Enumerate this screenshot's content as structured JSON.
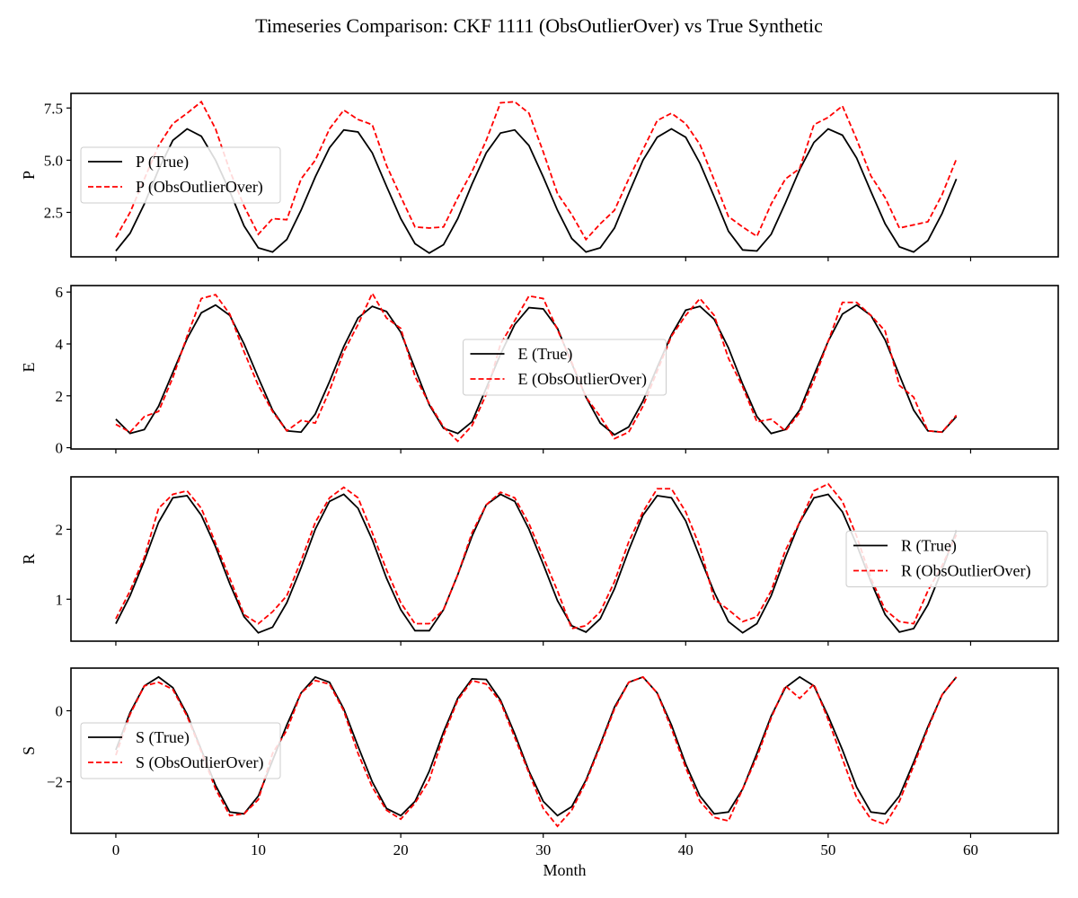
{
  "title": "Timeseries Comparison: CKF 1111 (ObsOutlierOver) vs True Synthetic",
  "xlabel": "Month",
  "colors": {
    "true": "#000000",
    "obs": "#ff0000"
  },
  "chart_data": [
    {
      "type": "line",
      "ylabel": "P",
      "xlim": [
        -3.15,
        66.15
      ],
      "ylim": [
        0.37,
        8.2
      ],
      "yticks": [
        2.5,
        5.0,
        7.5
      ],
      "ytick_labels": [
        "2.5",
        "5.0",
        "7.5"
      ],
      "xticks": [
        0,
        10,
        20,
        30,
        40,
        50,
        60
      ],
      "xtick_labels": [
        "0",
        "10",
        "20",
        "30",
        "40",
        "50",
        "60"
      ],
      "show_xtick_labels": false,
      "legend": "center-left",
      "series": [
        {
          "name": "P (True)",
          "style": "solid",
          "color": "#000000",
          "values": [
            0.65,
            1.5,
            2.9,
            4.55,
            5.95,
            6.5,
            6.15,
            5.0,
            3.5,
            1.85,
            0.8,
            0.6,
            1.2,
            2.6,
            4.2,
            5.6,
            6.45,
            6.35,
            5.35,
            3.75,
            2.2,
            1.0,
            0.55,
            0.95,
            2.2,
            3.85,
            5.35,
            6.3,
            6.45,
            5.7,
            4.2,
            2.6,
            1.25,
            0.6,
            0.8,
            1.75,
            3.4,
            5.0,
            6.1,
            6.5,
            6.1,
            4.85,
            3.25,
            1.6,
            0.7,
            0.65,
            1.45,
            2.95,
            4.55,
            5.85,
            6.5,
            6.2,
            5.1,
            3.5,
            1.95,
            0.85,
            0.6,
            1.15,
            2.45,
            4.1
          ]
        },
        {
          "name": "P (ObsOutlierOver)",
          "style": "dashed",
          "color": "#ff0000",
          "values": [
            1.3,
            2.5,
            4.1,
            5.7,
            6.75,
            7.25,
            7.8,
            6.5,
            4.5,
            2.8,
            1.45,
            2.2,
            2.15,
            4.1,
            5.0,
            6.5,
            7.4,
            6.95,
            6.7,
            4.75,
            3.25,
            1.8,
            1.75,
            1.8,
            3.2,
            4.45,
            5.95,
            7.75,
            7.8,
            7.25,
            5.4,
            3.4,
            2.4,
            1.2,
            1.95,
            2.6,
            4.1,
            5.5,
            6.9,
            7.25,
            6.75,
            5.75,
            4.05,
            2.3,
            1.8,
            1.35,
            2.9,
            4.1,
            4.6,
            6.7,
            7.05,
            7.6,
            6.0,
            4.25,
            3.2,
            1.75,
            1.9,
            2.05,
            3.35,
            5.05
          ]
        }
      ]
    },
    {
      "type": "line",
      "ylabel": "E",
      "xlim": [
        -3.15,
        66.15
      ],
      "ylim": [
        -0.05,
        6.25
      ],
      "yticks": [
        0,
        2,
        4,
        6
      ],
      "ytick_labels": [
        "0",
        "2",
        "4",
        "6"
      ],
      "xticks": [
        0,
        10,
        20,
        30,
        40,
        50,
        60
      ],
      "xtick_labels": [
        "0",
        "10",
        "20",
        "30",
        "40",
        "50",
        "60"
      ],
      "show_xtick_labels": false,
      "legend": "center",
      "series": [
        {
          "name": "E (True)",
          "style": "solid",
          "color": "#000000",
          "values": [
            1.1,
            0.55,
            0.7,
            1.6,
            2.9,
            4.2,
            5.2,
            5.5,
            5.1,
            4.0,
            2.7,
            1.45,
            0.65,
            0.6,
            1.3,
            2.55,
            3.9,
            5.0,
            5.45,
            5.25,
            4.45,
            3.05,
            1.65,
            0.75,
            0.55,
            1.0,
            2.3,
            3.6,
            4.75,
            5.4,
            5.35,
            4.6,
            3.25,
            1.95,
            0.95,
            0.5,
            0.8,
            1.8,
            3.1,
            4.35,
            5.3,
            5.45,
            4.95,
            3.85,
            2.45,
            1.2,
            0.55,
            0.7,
            1.45,
            2.8,
            4.1,
            5.15,
            5.5,
            5.1,
            4.15,
            2.8,
            1.45,
            0.65,
            0.6,
            1.2
          ]
        },
        {
          "name": "E (ObsOutlierOver)",
          "style": "dashed",
          "color": "#ff0000",
          "values": [
            0.9,
            0.6,
            1.2,
            1.4,
            2.7,
            4.3,
            5.75,
            5.9,
            5.15,
            3.7,
            2.4,
            1.4,
            0.65,
            1.05,
            0.95,
            2.2,
            3.7,
            4.75,
            5.95,
            5.0,
            4.6,
            2.75,
            1.7,
            0.8,
            0.25,
            0.85,
            2.05,
            4.0,
            4.9,
            5.85,
            5.75,
            4.55,
            3.3,
            1.95,
            1.2,
            0.35,
            0.6,
            1.6,
            2.95,
            4.3,
            5.1,
            5.75,
            5.1,
            3.45,
            2.35,
            1.0,
            1.1,
            0.65,
            1.35,
            2.6,
            4.1,
            5.6,
            5.6,
            5.1,
            4.5,
            2.4,
            1.95,
            0.65,
            0.6,
            1.25
          ]
        }
      ]
    },
    {
      "type": "line",
      "ylabel": "R",
      "xlim": [
        -3.15,
        66.15
      ],
      "ylim": [
        0.4,
        2.75
      ],
      "yticks": [
        1,
        2
      ],
      "ytick_labels": [
        "1",
        "2"
      ],
      "xticks": [
        0,
        10,
        20,
        30,
        40,
        50,
        60
      ],
      "xtick_labels": [
        "0",
        "10",
        "20",
        "30",
        "40",
        "50",
        "60"
      ],
      "show_xtick_labels": false,
      "legend": "center-right",
      "series": [
        {
          "name": "R (True)",
          "style": "solid",
          "color": "#000000",
          "values": [
            0.65,
            1.05,
            1.55,
            2.1,
            2.45,
            2.48,
            2.2,
            1.75,
            1.22,
            0.75,
            0.52,
            0.6,
            0.95,
            1.45,
            2.0,
            2.4,
            2.5,
            2.3,
            1.85,
            1.3,
            0.85,
            0.55,
            0.55,
            0.85,
            1.35,
            1.9,
            2.35,
            2.5,
            2.4,
            2.0,
            1.5,
            0.98,
            0.62,
            0.53,
            0.72,
            1.15,
            1.7,
            2.2,
            2.48,
            2.45,
            2.12,
            1.6,
            1.1,
            0.68,
            0.52,
            0.65,
            1.05,
            1.6,
            2.1,
            2.45,
            2.5,
            2.25,
            1.78,
            1.25,
            0.78,
            0.53,
            0.58,
            0.92,
            1.42,
            1.98
          ]
        },
        {
          "name": "R (ObsOutlierOver)",
          "style": "dashed",
          "color": "#ff0000",
          "values": [
            0.72,
            1.12,
            1.6,
            2.3,
            2.5,
            2.55,
            2.3,
            1.8,
            1.3,
            0.78,
            0.65,
            0.82,
            1.05,
            1.55,
            2.1,
            2.45,
            2.6,
            2.45,
            1.95,
            1.42,
            0.95,
            0.65,
            0.65,
            0.85,
            1.35,
            1.95,
            2.35,
            2.53,
            2.45,
            2.08,
            1.6,
            1.12,
            0.58,
            0.62,
            0.82,
            1.25,
            1.82,
            2.25,
            2.58,
            2.58,
            2.25,
            1.75,
            1.0,
            0.85,
            0.68,
            0.75,
            1.12,
            1.7,
            2.1,
            2.55,
            2.65,
            2.4,
            1.9,
            1.3,
            0.85,
            0.68,
            0.65,
            1.12,
            1.48,
            1.92
          ]
        }
      ]
    },
    {
      "type": "line",
      "ylabel": "S",
      "xlim": [
        -3.15,
        66.15
      ],
      "ylim": [
        -3.45,
        1.2
      ],
      "yticks": [
        -2,
        0
      ],
      "ytick_labels": [
        "−2",
        "0"
      ],
      "xticks": [
        0,
        10,
        20,
        30,
        40,
        50,
        60
      ],
      "xtick_labels": [
        "0",
        "10",
        "20",
        "30",
        "40",
        "50",
        "60"
      ],
      "show_xtick_labels": true,
      "legend": "center-left",
      "series": [
        {
          "name": "S (True)",
          "style": "solid",
          "color": "#000000",
          "values": [
            -1.1,
            -0.05,
            0.7,
            0.95,
            0.65,
            -0.1,
            -1.1,
            -2.1,
            -2.85,
            -2.9,
            -2.4,
            -1.4,
            -0.4,
            0.5,
            0.95,
            0.8,
            0.05,
            -1.0,
            -2.0,
            -2.75,
            -2.95,
            -2.55,
            -1.7,
            -0.6,
            0.35,
            0.9,
            0.88,
            0.3,
            -0.65,
            -1.7,
            -2.55,
            -2.95,
            -2.7,
            -1.95,
            -0.95,
            0.1,
            0.8,
            0.95,
            0.5,
            -0.4,
            -1.5,
            -2.4,
            -2.9,
            -2.85,
            -2.2,
            -1.2,
            -0.15,
            0.65,
            0.95,
            0.7,
            -0.15,
            -1.1,
            -2.15,
            -2.85,
            -2.9,
            -2.4,
            -1.45,
            -0.45,
            0.45,
            0.95
          ]
        },
        {
          "name": "S (ObsOutlierOver)",
          "style": "dashed",
          "color": "#ff0000",
          "values": [
            -1.25,
            -0.1,
            0.7,
            0.8,
            0.6,
            -0.15,
            -1.15,
            -2.2,
            -2.95,
            -2.9,
            -2.5,
            -1.2,
            -0.55,
            0.5,
            0.85,
            0.75,
            0.0,
            -1.2,
            -2.15,
            -2.8,
            -3.05,
            -2.6,
            -1.95,
            -0.7,
            0.3,
            0.85,
            0.75,
            0.25,
            -0.75,
            -1.75,
            -2.75,
            -3.25,
            -2.8,
            -2.0,
            -1.0,
            0.05,
            0.8,
            0.95,
            0.5,
            -0.5,
            -1.6,
            -2.55,
            -3.0,
            -3.1,
            -2.2,
            -1.3,
            -0.2,
            0.7,
            0.35,
            0.75,
            -0.25,
            -1.35,
            -2.45,
            -3.05,
            -3.2,
            -2.55,
            -1.55,
            -0.5,
            0.45,
            0.95
          ]
        }
      ]
    }
  ]
}
